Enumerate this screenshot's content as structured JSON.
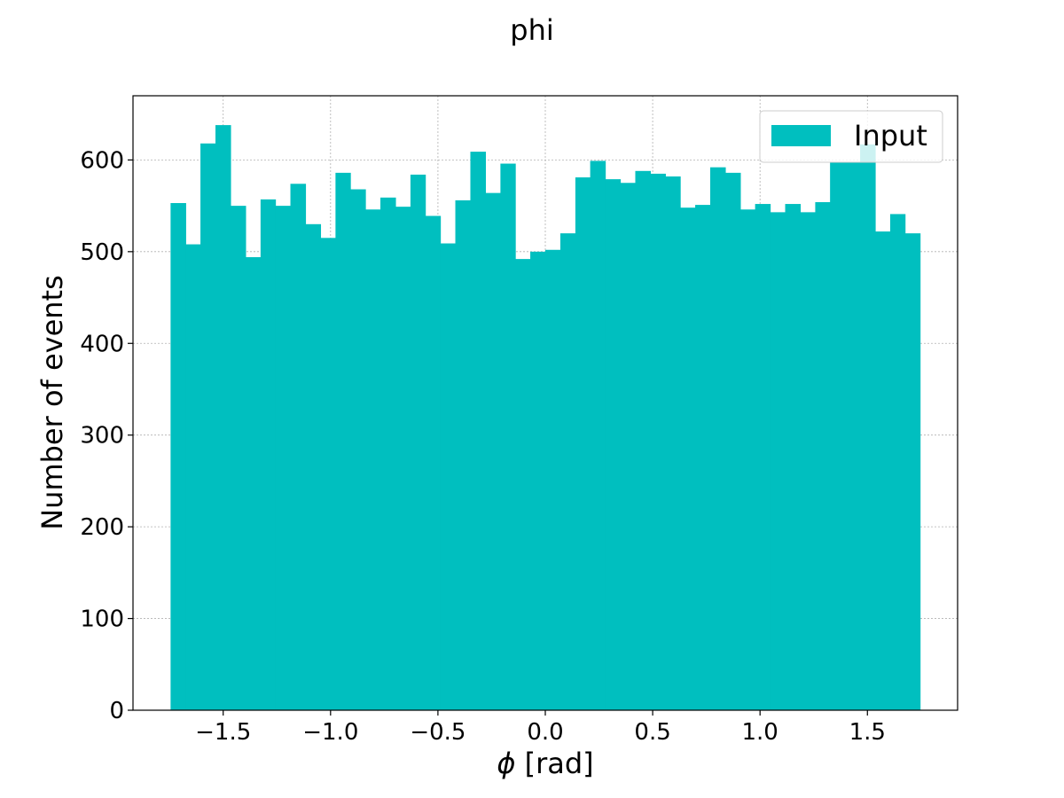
{
  "chart_data": {
    "type": "bar",
    "title": "phi",
    "xlabel_symbol": "ϕ",
    "xlabel_rest": " [rad]",
    "ylabel": "Number of events",
    "legend_label": "Input",
    "legend_position": "top-right",
    "grid": true,
    "color": "#00bfbf",
    "xlim": [
      -1.92,
      1.92
    ],
    "ylim": [
      0,
      670
    ],
    "xticks": [
      -1.5,
      -1.0,
      -0.5,
      0.0,
      0.5,
      1.0,
      1.5
    ],
    "xtick_labels": [
      "−1.5",
      "−1.0",
      "−0.5",
      "0.0",
      "0.5",
      "1.0",
      "1.5"
    ],
    "yticks": [
      0,
      100,
      200,
      300,
      400,
      500,
      600
    ],
    "ytick_labels": [
      "0",
      "100",
      "200",
      "300",
      "400",
      "500",
      "600"
    ],
    "bin_edges": [
      -1.745,
      -1.675,
      -1.606,
      -1.536,
      -1.466,
      -1.396,
      -1.326,
      -1.257,
      -1.187,
      -1.117,
      -1.047,
      -0.977,
      -0.908,
      -0.838,
      -0.768,
      -0.698,
      -0.628,
      -0.559,
      -0.489,
      -0.419,
      -0.349,
      -0.279,
      -0.209,
      -0.14,
      -0.07,
      0.0,
      0.07,
      0.14,
      0.209,
      0.279,
      0.349,
      0.419,
      0.489,
      0.559,
      0.628,
      0.698,
      0.768,
      0.838,
      0.908,
      0.977,
      1.047,
      1.117,
      1.187,
      1.257,
      1.326,
      1.396,
      1.466,
      1.536,
      1.606,
      1.675,
      1.745
    ],
    "values": [
      553,
      508,
      618,
      638,
      550,
      494,
      557,
      550,
      574,
      530,
      515,
      586,
      568,
      546,
      559,
      549,
      584,
      539,
      509,
      556,
      609,
      564,
      596,
      492,
      500,
      502,
      520,
      581,
      599,
      579,
      575,
      588,
      585,
      582,
      548,
      551,
      592,
      586,
      546,
      552,
      543,
      552,
      543,
      554,
      597,
      597,
      617,
      522,
      541,
      520
    ]
  }
}
